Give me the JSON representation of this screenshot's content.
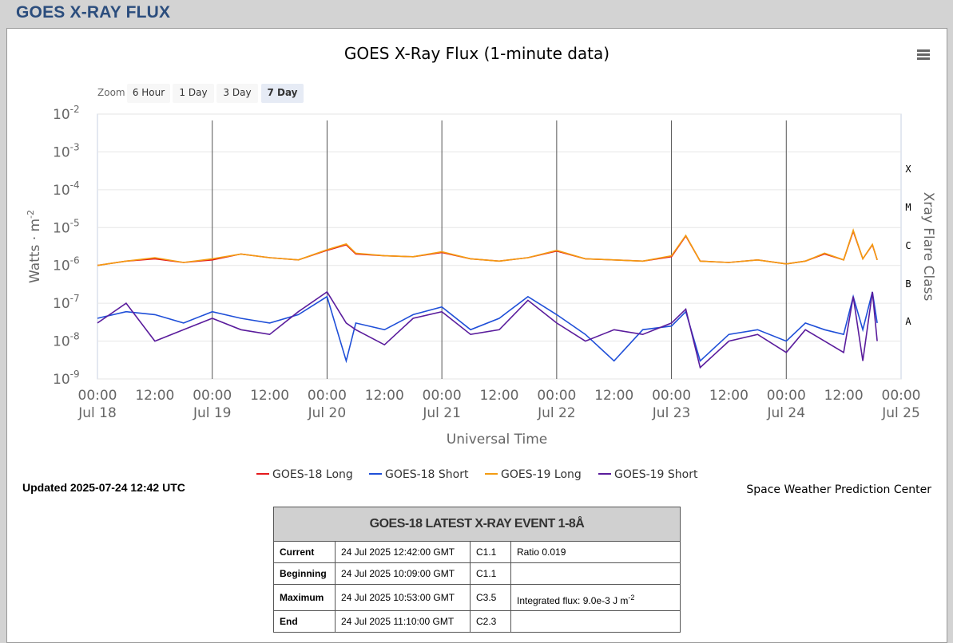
{
  "page": {
    "heading": "GOES X-RAY FLUX"
  },
  "chart": {
    "title": "GOES X-Ray Flux (1-minute data)",
    "menu_icon": "hamburger-menu-icon",
    "zoom": {
      "label": "Zoom",
      "buttons": [
        "6 Hour",
        "1 Day",
        "3 Day",
        "7 Day"
      ],
      "selected": "7 Day"
    },
    "y_axis": {
      "title": "Watts · m",
      "title_exponent": "-2",
      "scale": "log",
      "ticks": [
        {
          "base": "10",
          "exp": "-2"
        },
        {
          "base": "10",
          "exp": "-3"
        },
        {
          "base": "10",
          "exp": "-4"
        },
        {
          "base": "10",
          "exp": "-5"
        },
        {
          "base": "10",
          "exp": "-6"
        },
        {
          "base": "10",
          "exp": "-7"
        },
        {
          "base": "10",
          "exp": "-8"
        },
        {
          "base": "10",
          "exp": "-9"
        }
      ]
    },
    "x_axis": {
      "title": "Universal Time",
      "ticks": [
        {
          "time": "00:00",
          "date": "Jul 18"
        },
        {
          "time": "12:00",
          "date": ""
        },
        {
          "time": "00:00",
          "date": "Jul 19"
        },
        {
          "time": "12:00",
          "date": ""
        },
        {
          "time": "00:00",
          "date": "Jul 20"
        },
        {
          "time": "12:00",
          "date": ""
        },
        {
          "time": "00:00",
          "date": "Jul 21"
        },
        {
          "time": "12:00",
          "date": ""
        },
        {
          "time": "00:00",
          "date": "Jul 22"
        },
        {
          "time": "12:00",
          "date": ""
        },
        {
          "time": "00:00",
          "date": "Jul 23"
        },
        {
          "time": "12:00",
          "date": ""
        },
        {
          "time": "00:00",
          "date": "Jul 24"
        },
        {
          "time": "12:00",
          "date": ""
        },
        {
          "time": "00:00",
          "date": "Jul 25"
        }
      ]
    },
    "right_axis": {
      "title": "Xray Flare Class",
      "classes": [
        "X",
        "M",
        "C",
        "B",
        "A"
      ]
    },
    "legend": [
      {
        "name": "GOES-18 Long",
        "color": "#e41a1c"
      },
      {
        "name": "GOES-18 Short",
        "color": "#1f4fd8"
      },
      {
        "name": "GOES-19 Long",
        "color": "#f39c12"
      },
      {
        "name": "GOES-19 Short",
        "color": "#5a1c9c"
      }
    ],
    "updated": "Updated 2025-07-24 12:42 UTC",
    "credit": "Space Weather Prediction Center"
  },
  "chart_data": {
    "type": "line",
    "title": "GOES X-Ray Flux (1-minute data)",
    "xlabel": "Universal Time",
    "ylabel": "Watts · m-2",
    "yscale": "log",
    "ylim": [
      1e-09,
      0.01
    ],
    "xlim": [
      "2025-07-18 00:00",
      "2025-07-25 00:00"
    ],
    "x_hours": [
      0,
      6,
      12,
      18,
      24,
      30,
      36,
      42,
      48,
      52,
      54,
      60,
      66,
      72,
      78,
      84,
      90,
      96,
      102,
      108,
      114,
      120,
      123,
      126,
      132,
      138,
      144,
      148,
      152,
      156,
      158,
      160,
      162,
      163
    ],
    "series": [
      {
        "name": "GOES-18 Long",
        "color": "#e41a1c",
        "values": [
          1e-06,
          1.3e-06,
          1.5e-06,
          1.2e-06,
          1.4e-06,
          2e-06,
          1.6e-06,
          1.4e-06,
          2.5e-06,
          3.5e-06,
          2e-06,
          1.8e-06,
          1.7e-06,
          2.2e-06,
          1.5e-06,
          1.3e-06,
          1.6e-06,
          2.4e-06,
          1.5e-06,
          1.4e-06,
          1.3e-06,
          1.7e-06,
          6e-06,
          1.3e-06,
          1.2e-06,
          1.4e-06,
          1.1e-06,
          1.3e-06,
          2e-06,
          1.4e-06,
          8e-06,
          1.5e-06,
          3.5e-06,
          1.4e-06
        ]
      },
      {
        "name": "GOES-18 Short",
        "color": "#1f4fd8",
        "values": [
          4e-08,
          6e-08,
          5e-08,
          3e-08,
          6e-08,
          4e-08,
          3e-08,
          5e-08,
          1.5e-07,
          3e-09,
          3e-08,
          2e-08,
          5e-08,
          8e-08,
          2e-08,
          4e-08,
          1.5e-07,
          5e-08,
          1.5e-08,
          3e-09,
          2e-08,
          2.5e-08,
          6e-08,
          3e-09,
          1.5e-08,
          2e-08,
          1e-08,
          3e-08,
          2e-08,
          1.5e-08,
          1.5e-07,
          2e-08,
          2e-07,
          3e-08
        ]
      },
      {
        "name": "GOES-19 Long",
        "color": "#f39c12",
        "values": [
          1e-06,
          1.3e-06,
          1.6e-06,
          1.2e-06,
          1.5e-06,
          2e-06,
          1.6e-06,
          1.4e-06,
          2.6e-06,
          3.7e-06,
          2.1e-06,
          1.8e-06,
          1.7e-06,
          2.3e-06,
          1.5e-06,
          1.3e-06,
          1.6e-06,
          2.5e-06,
          1.5e-06,
          1.4e-06,
          1.3e-06,
          1.8e-06,
          6.2e-06,
          1.3e-06,
          1.2e-06,
          1.4e-06,
          1.1e-06,
          1.3e-06,
          2.1e-06,
          1.4e-06,
          8.5e-06,
          1.5e-06,
          3.6e-06,
          1.4e-06
        ]
      },
      {
        "name": "GOES-19 Short",
        "color": "#5a1c9c",
        "values": [
          3e-08,
          1e-07,
          1e-08,
          2e-08,
          4e-08,
          2e-08,
          1.5e-08,
          6e-08,
          2e-07,
          3e-08,
          2e-08,
          8e-09,
          4e-08,
          6e-08,
          1.5e-08,
          2e-08,
          1.2e-07,
          3e-08,
          1e-08,
          2e-08,
          1.5e-08,
          3e-08,
          7e-08,
          2e-09,
          1e-08,
          1.5e-08,
          5e-09,
          2e-08,
          1e-08,
          5e-09,
          1.5e-07,
          3e-09,
          2e-07,
          1e-08
        ]
      }
    ],
    "grid": true,
    "legend_position": "bottom"
  },
  "event_table": {
    "header": "GOES-18 LATEST X-RAY EVENT 1-8Å",
    "rows": [
      {
        "label": "Current",
        "time": "24 Jul 2025 12:42:00 GMT",
        "class": "C1.1",
        "note": "Ratio 0.019",
        "note_exp": ""
      },
      {
        "label": "Beginning",
        "time": "24 Jul 2025 10:09:00 GMT",
        "class": "C1.1",
        "note": "",
        "note_exp": ""
      },
      {
        "label": "Maximum",
        "time": "24 Jul 2025 10:53:00 GMT",
        "class": "C3.5",
        "note": "Integrated flux: 9.0e-3 J m",
        "note_exp": "-2"
      },
      {
        "label": "End",
        "time": "24 Jul 2025 11:10:00 GMT",
        "class": "C2.3",
        "note": "",
        "note_exp": ""
      }
    ]
  }
}
